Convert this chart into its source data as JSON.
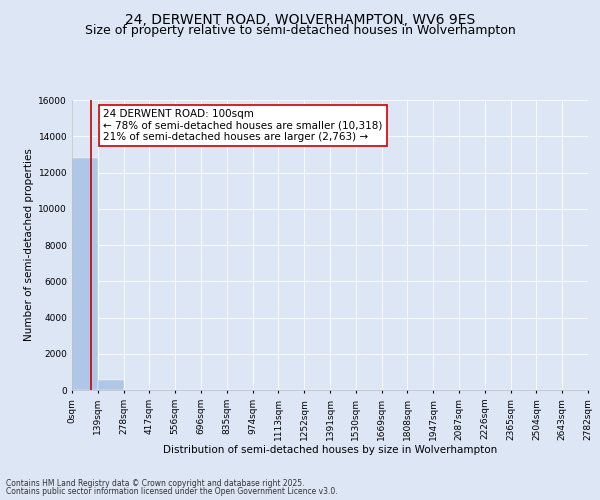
{
  "title": "24, DERWENT ROAD, WOLVERHAMPTON, WV6 9ES",
  "subtitle": "Size of property relative to semi-detached houses in Wolverhampton",
  "xlabel": "Distribution of semi-detached houses by size in Wolverhampton",
  "ylabel": "Number of semi-detached properties",
  "footnote1": "Contains HM Land Registry data © Crown copyright and database right 2025.",
  "footnote2": "Contains public sector information licensed under the Open Government Licence v3.0.",
  "annotation_title": "24 DERWENT ROAD: 100sqm",
  "annotation_line1": "← 78% of semi-detached houses are smaller (10,318)",
  "annotation_line2": "21% of semi-detached houses are larger (2,763) →",
  "property_size": 100,
  "bin_edges": [
    0,
    139,
    278,
    417,
    556,
    696,
    835,
    974,
    1113,
    1252,
    1391,
    1530,
    1669,
    1808,
    1947,
    2087,
    2226,
    2365,
    2504,
    2643,
    2782
  ],
  "bin_labels": [
    "0sqm",
    "139sqm",
    "278sqm",
    "417sqm",
    "556sqm",
    "696sqm",
    "835sqm",
    "974sqm",
    "1113sqm",
    "1252sqm",
    "1391sqm",
    "1530sqm",
    "1669sqm",
    "1808sqm",
    "1947sqm",
    "2087sqm",
    "2226sqm",
    "2365sqm",
    "2504sqm",
    "2643sqm",
    "2782sqm"
  ],
  "bar_heights": [
    12800,
    560,
    0,
    0,
    0,
    0,
    0,
    0,
    0,
    0,
    0,
    0,
    0,
    0,
    0,
    0,
    0,
    0,
    0,
    0
  ],
  "bar_color": "#aec6e8",
  "bar_edge_color": "#aec6e8",
  "ylim": [
    0,
    16000
  ],
  "yticks": [
    0,
    2000,
    4000,
    6000,
    8000,
    10000,
    12000,
    14000,
    16000
  ],
  "grid_color": "#dce6f5",
  "background_color": "#dce6f5",
  "plot_background": "#dce6f5",
  "annotation_box_color": "#ffffff",
  "annotation_box_edge": "#cc0000",
  "red_line_color": "#cc0000",
  "title_fontsize": 10,
  "subtitle_fontsize": 9,
  "axis_label_fontsize": 7.5,
  "tick_fontsize": 6.5,
  "annotation_fontsize": 7.5
}
